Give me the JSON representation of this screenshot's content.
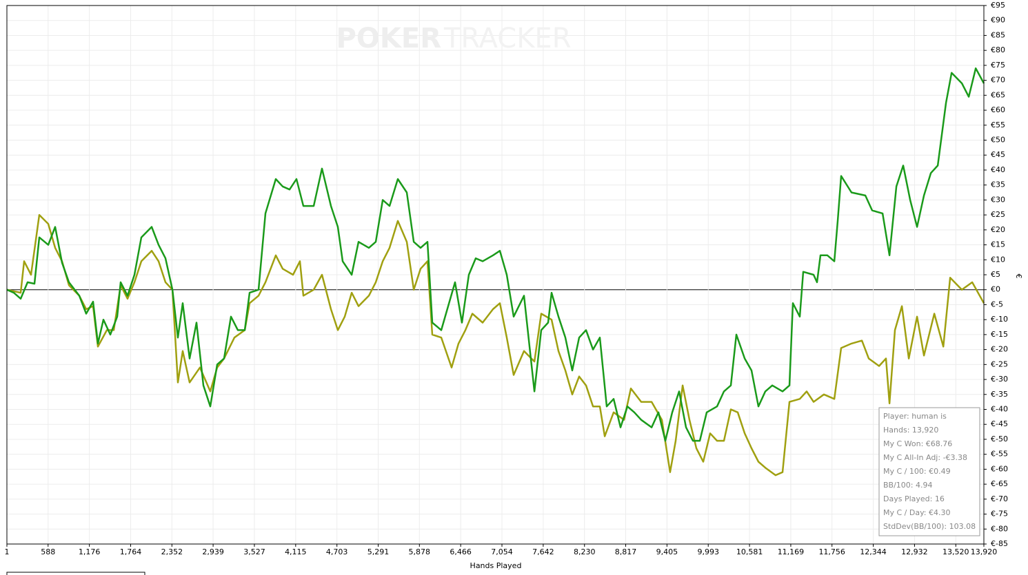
{
  "chart_data": {
    "type": "line",
    "xlabel": "Hands Played",
    "ylabel": "€",
    "watermark": [
      "POKER",
      "TRACKER"
    ],
    "xlim": [
      1,
      13920
    ],
    "ylim": [
      -85,
      95
    ],
    "xticks": [
      1,
      {
        "value": 588,
        "label": "588"
      },
      {
        "value": 1176,
        "label": "1,176"
      },
      {
        "value": 1764,
        "label": "1,764"
      },
      {
        "value": 2352,
        "label": "2,352"
      },
      {
        "value": 2939,
        "label": "2,939"
      },
      {
        "value": 3527,
        "label": "3,527"
      },
      {
        "value": 4115,
        "label": "4,115"
      },
      {
        "value": 4703,
        "label": "4,703"
      },
      {
        "value": 5291,
        "label": "5,291"
      },
      {
        "value": 5878,
        "label": "5,878"
      },
      {
        "value": 6466,
        "label": "6,466"
      },
      {
        "value": 7054,
        "label": "7,054"
      },
      {
        "value": 7642,
        "label": "7,642"
      },
      {
        "value": 8230,
        "label": "8,230"
      },
      {
        "value": 8817,
        "label": "8,817"
      },
      {
        "value": 9405,
        "label": "9,405"
      },
      {
        "value": 9993,
        "label": "9,993"
      },
      {
        "value": 10581,
        "label": "10,581"
      },
      {
        "value": 11169,
        "label": "11,169"
      },
      {
        "value": 11756,
        "label": "11,756"
      },
      {
        "value": 12344,
        "label": "12,344"
      },
      {
        "value": 12932,
        "label": "12,932"
      },
      {
        "value": 13520,
        "label": "13,520"
      },
      {
        "value": 13920,
        "label": "13,920"
      }
    ],
    "yticks": [
      {
        "value": 95,
        "label": "€95"
      },
      {
        "value": 90,
        "label": "€90"
      },
      {
        "value": 85,
        "label": "€85"
      },
      {
        "value": 80,
        "label": "€80"
      },
      {
        "value": 75,
        "label": "€75"
      },
      {
        "value": 70,
        "label": "€70"
      },
      {
        "value": 65,
        "label": "€65"
      },
      {
        "value": 60,
        "label": "€60"
      },
      {
        "value": 55,
        "label": "€55"
      },
      {
        "value": 50,
        "label": "€50"
      },
      {
        "value": 45,
        "label": "€45"
      },
      {
        "value": 40,
        "label": "€40"
      },
      {
        "value": 35,
        "label": "€35"
      },
      {
        "value": 30,
        "label": "€30"
      },
      {
        "value": 25,
        "label": "€25"
      },
      {
        "value": 20,
        "label": "€20"
      },
      {
        "value": 15,
        "label": "€15"
      },
      {
        "value": 10,
        "label": "€10"
      },
      {
        "value": 5,
        "label": "€5"
      },
      {
        "value": 0,
        "label": "€0"
      },
      {
        "value": -5,
        "label": "€-5"
      },
      {
        "value": -10,
        "label": "€-10"
      },
      {
        "value": -15,
        "label": "€-15"
      },
      {
        "value": -20,
        "label": "€-20"
      },
      {
        "value": -25,
        "label": "€-25"
      },
      {
        "value": -30,
        "label": "€-30"
      },
      {
        "value": -35,
        "label": "€-35"
      },
      {
        "value": -40,
        "label": "€-40"
      },
      {
        "value": -45,
        "label": "€-45"
      },
      {
        "value": -50,
        "label": "€-50"
      },
      {
        "value": -55,
        "label": "€-55"
      },
      {
        "value": -60,
        "label": "€-60"
      },
      {
        "value": -65,
        "label": "€-65"
      },
      {
        "value": -70,
        "label": "€-70"
      },
      {
        "value": -75,
        "label": "€-75"
      },
      {
        "value": -80,
        "label": "€-80"
      },
      {
        "value": -85,
        "label": "€-85"
      }
    ],
    "grid": true,
    "series": [
      {
        "color": "#1a9a1a",
        "x": [
          1,
          99,
          197,
          296,
          394,
          463,
          590,
          689,
          787,
          885,
          1032,
          1131,
          1229,
          1298,
          1376,
          1474,
          1573,
          1622,
          1720,
          1818,
          1916,
          2064,
          2162,
          2260,
          2359,
          2437,
          2506,
          2604,
          2702,
          2801,
          2899,
          2997,
          3095,
          3193,
          3292,
          3390,
          3459,
          3586,
          3685,
          3832,
          3930,
          4028,
          4127,
          4225,
          4372,
          4490,
          4618,
          4716,
          4785,
          4913,
          5011,
          5158,
          5256,
          5355,
          5453,
          5571,
          5698,
          5797,
          5895,
          5993,
          6062,
          6189,
          6386,
          6484,
          6582,
          6681,
          6779,
          6926,
          7024,
          7123,
          7221,
          7368,
          7516,
          7614,
          7712,
          7761,
          7859,
          7958,
          8056,
          8154,
          8252,
          8351,
          8449,
          8547,
          8645,
          8743,
          8842,
          8940,
          9038,
          9186,
          9284,
          9382,
          9480,
          9578,
          9677,
          9775,
          9873,
          9971,
          10119,
          10217,
          10315,
          10394,
          10512,
          10610,
          10708,
          10806,
          10905,
          11052,
          11150,
          11199,
          11297,
          11346,
          11494,
          11543,
          11592,
          11690,
          11789,
          11838,
          11887,
          12034,
          12231,
          12329,
          12477,
          12575,
          12673,
          12771,
          12870,
          12968,
          13066,
          13165,
          13263,
          13381,
          13460,
          13607,
          13705,
          13804,
          13920
        ],
        "values": [
          0,
          -1,
          -3,
          2.5,
          2,
          17.5,
          15,
          21,
          9,
          2.5,
          -2,
          -8,
          -4,
          -18,
          -10,
          -15,
          -9,
          2.5,
          -2,
          5,
          17.5,
          21,
          15,
          10.5,
          0,
          -16,
          -4.5,
          -23,
          -11,
          -32,
          -39,
          -25,
          -23,
          -9,
          -13.5,
          -13.5,
          -1,
          0,
          25.5,
          37,
          34.5,
          33.5,
          37,
          28,
          28,
          40.5,
          28,
          21,
          9.5,
          5,
          16,
          14,
          16,
          30,
          28,
          37,
          32.5,
          16,
          14,
          16,
          -11,
          -13.5,
          2.5,
          -11,
          5,
          10.5,
          9.5,
          11.5,
          13,
          5,
          -9,
          -2,
          -34,
          -13.5,
          -11,
          -1,
          -9,
          -16,
          -27,
          -16,
          -13.5,
          -20,
          -16,
          -39,
          -36.5,
          -46,
          -39,
          -41,
          -43.5,
          -46,
          -41,
          -50.5,
          -41,
          -34,
          -46,
          -50.5,
          -50.5,
          -41,
          -39,
          -34,
          -32,
          -15,
          -23,
          -27,
          -39,
          -34,
          -32,
          -34,
          -32,
          -4.5,
          -9,
          6,
          5,
          2.5,
          11.5,
          11.5,
          9.5,
          23,
          38,
          32.5,
          31.5,
          26.5,
          25.5,
          11.5,
          34.5,
          41.5,
          30,
          21,
          31.5,
          39,
          41.5,
          62.5,
          72.5,
          69,
          64.5,
          74,
          69
        ]
      },
      {
        "color": "#a0a010",
        "x": [
          1,
          197,
          247,
          345,
          463,
          590,
          689,
          787,
          885,
          1032,
          1131,
          1229,
          1298,
          1425,
          1524,
          1622,
          1720,
          1818,
          1916,
          2064,
          2162,
          2260,
          2359,
          2437,
          2506,
          2604,
          2751,
          2899,
          2997,
          3095,
          3243,
          3390,
          3459,
          3586,
          3685,
          3832,
          3930,
          4077,
          4176,
          4225,
          4372,
          4490,
          4618,
          4716,
          4814,
          4913,
          5011,
          5158,
          5256,
          5355,
          5453,
          5571,
          5698,
          5797,
          5895,
          5993,
          6062,
          6189,
          6337,
          6435,
          6533,
          6632,
          6779,
          6926,
          7024,
          7123,
          7221,
          7368,
          7516,
          7614,
          7761,
          7859,
          7958,
          8056,
          8154,
          8252,
          8351,
          8449,
          8518,
          8645,
          8793,
          8891,
          9038,
          9186,
          9333,
          9450,
          9529,
          9628,
          9726,
          9824,
          9922,
          10020,
          10119,
          10217,
          10315,
          10413,
          10512,
          10610,
          10708,
          10806,
          10953,
          11052,
          11150,
          11297,
          11396,
          11494,
          11641,
          11789,
          11887,
          12034,
          12182,
          12280,
          12427,
          12525,
          12575,
          12653,
          12752,
          12850,
          12968,
          13066,
          13214,
          13342,
          13440,
          13607,
          13754,
          13920
        ],
        "values": [
          0,
          -1,
          9.5,
          5,
          25,
          22,
          14,
          9.5,
          1.5,
          -2,
          -6.5,
          -5.5,
          -19,
          -13.5,
          -13.5,
          1.5,
          -3,
          2.5,
          9.5,
          13,
          9.5,
          2.5,
          0,
          -31,
          -20.5,
          -31,
          -26,
          -34,
          -26,
          -23,
          -16,
          -13.5,
          -4.5,
          -2,
          2.5,
          11.5,
          7,
          5,
          9.5,
          -2,
          0,
          5,
          -6.5,
          -13.5,
          -9,
          -1,
          -5.5,
          -2,
          2.5,
          9.5,
          14,
          23,
          16,
          0,
          7,
          9.5,
          -15,
          -16,
          -26,
          -18,
          -13.5,
          -8,
          -11,
          -6.5,
          -4.5,
          -16,
          -28.5,
          -20.5,
          -24,
          -8,
          -10,
          -20.5,
          -27,
          -35,
          -29,
          -32,
          -39,
          -39,
          -49,
          -41,
          -43.5,
          -33,
          -37.5,
          -37.5,
          -43.5,
          -61,
          -50.5,
          -32,
          -43.5,
          -53,
          -57.5,
          -48,
          -50.5,
          -50.5,
          -40,
          -41,
          -48,
          -53,
          -57.5,
          -59.5,
          -62,
          -61,
          -37.5,
          -36.5,
          -34,
          -37.5,
          -35,
          -36.5,
          -19.5,
          -18,
          -17,
          -23,
          -25.5,
          -23,
          -38,
          -13.5,
          -5.5,
          -23,
          -9,
          -22,
          -8,
          -19,
          4,
          0,
          2.5,
          -4.5
        ]
      }
    ],
    "info": [
      "Player: human is",
      "Hands: 13,920",
      "My C Won: €68.76",
      "My C All-In Adj: -€3.38",
      "My C / 100: €0.49",
      "BB/100: 4.94",
      "Days Played: 16",
      "My C / Day: €4.30",
      "StdDev(BB/100): 103.08"
    ]
  }
}
